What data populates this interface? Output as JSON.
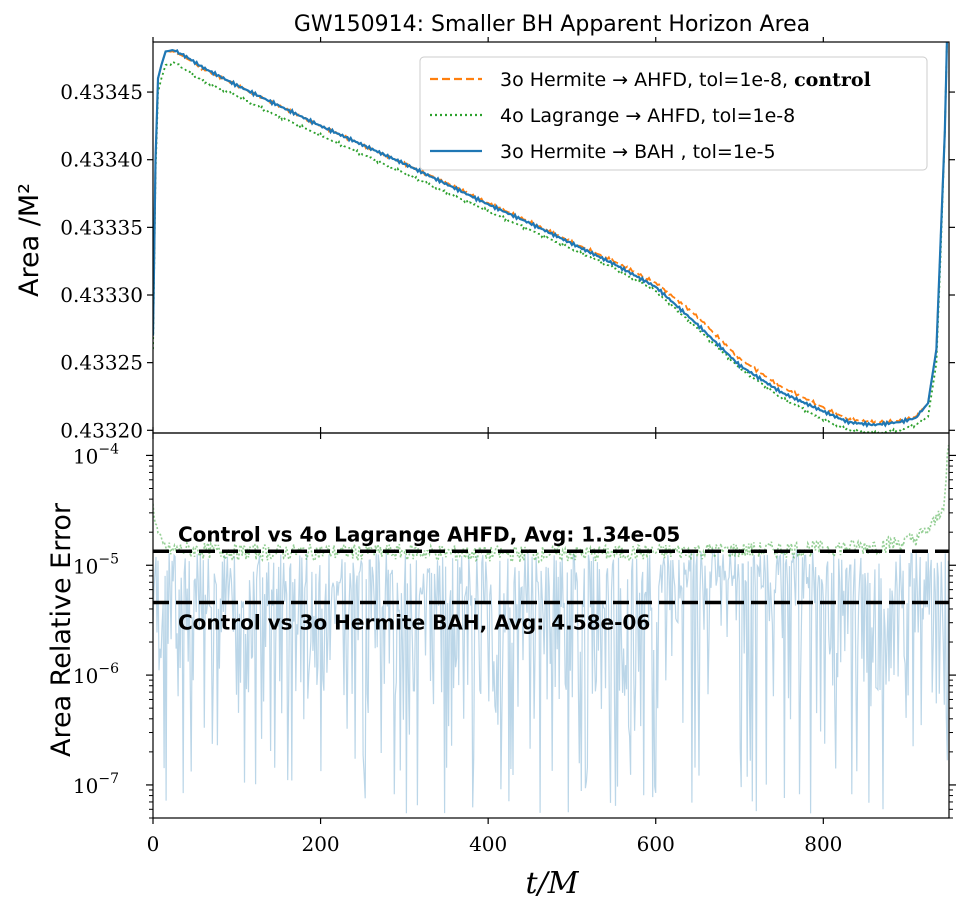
{
  "figure": {
    "title": "GW150914: Smaller BH Apparent Horizon Area",
    "xlabel": "t/M"
  },
  "chart_data": [
    {
      "type": "line",
      "panel": "top",
      "ylabel": "Area /M²",
      "xlim": [
        0,
        950
      ],
      "ylim": [
        0.433198,
        0.433487
      ],
      "yticks": [
        0.4332,
        0.43325,
        0.4333,
        0.43335,
        0.4334,
        0.43345
      ],
      "ytick_labels": [
        "0.43320",
        "0.43325",
        "0.43330",
        "0.43335",
        "0.43340",
        "0.43345"
      ],
      "legend_position": "top-right",
      "series": [
        {
          "name": "3o Hermite → AHFD, tol=1e-8,",
          "name_suffix": "control",
          "color": "#ff7f0e",
          "style": "dashed",
          "x": [
            0,
            3,
            6,
            10,
            15,
            25,
            40,
            60,
            100,
            150,
            200,
            250,
            300,
            350,
            400,
            450,
            500,
            550,
            600,
            650,
            700,
            750,
            800,
            830,
            860,
            890,
            910,
            925,
            935,
            940,
            945,
            948
          ],
          "y": [
            0.43327,
            0.4334,
            0.43346,
            0.43347,
            0.43348,
            0.43348,
            0.433475,
            0.433467,
            0.433455,
            0.43344,
            0.433425,
            0.433411,
            0.433397,
            0.433383,
            0.433368,
            0.433354,
            0.433339,
            0.433325,
            0.433309,
            0.433284,
            0.433253,
            0.433232,
            0.433217,
            0.433208,
            0.433206,
            0.433207,
            0.43321,
            0.43322,
            0.43326,
            0.43334,
            0.43342,
            0.4335
          ]
        },
        {
          "name": "4o Lagrange → AHFD, tol=1e-8",
          "color": "#2ca02c",
          "style": "dotted",
          "x": [
            0,
            3,
            6,
            10,
            15,
            25,
            40,
            60,
            100,
            150,
            200,
            250,
            300,
            350,
            400,
            450,
            500,
            550,
            600,
            650,
            700,
            750,
            800,
            830,
            860,
            890,
            910,
            925,
            935,
            940,
            945,
            948
          ],
          "y": [
            0.43326,
            0.43339,
            0.43345,
            0.43346,
            0.43347,
            0.433472,
            0.433466,
            0.433458,
            0.433447,
            0.433432,
            0.433418,
            0.433404,
            0.43339,
            0.433376,
            0.433362,
            0.433348,
            0.433334,
            0.43332,
            0.433303,
            0.433275,
            0.433246,
            0.433224,
            0.433208,
            0.4332,
            0.433198,
            0.4332,
            0.433204,
            0.43321,
            0.43325,
            0.43333,
            0.43342,
            0.4335
          ]
        },
        {
          "name": "3o Hermite → BAH , tol=1e-5",
          "color": "#1f77b4",
          "style": "solid",
          "x": [
            0,
            3,
            6,
            10,
            15,
            25,
            40,
            60,
            100,
            150,
            200,
            250,
            300,
            350,
            400,
            450,
            500,
            550,
            600,
            650,
            700,
            750,
            800,
            830,
            860,
            890,
            910,
            925,
            935,
            940,
            945,
            948
          ],
          "y": [
            0.43327,
            0.4334,
            0.43346,
            0.43347,
            0.43348,
            0.433481,
            0.433476,
            0.433468,
            0.433455,
            0.43344,
            0.433425,
            0.433411,
            0.433397,
            0.433382,
            0.433367,
            0.433353,
            0.433338,
            0.433323,
            0.433306,
            0.433278,
            0.433248,
            0.433228,
            0.433214,
            0.433206,
            0.433204,
            0.433206,
            0.433209,
            0.43322,
            0.43326,
            0.43334,
            0.43342,
            0.4335
          ]
        }
      ]
    },
    {
      "type": "line",
      "panel": "bottom",
      "ylabel": "Area Relative Error",
      "yscale": "log",
      "xlim": [
        0,
        950
      ],
      "ylim": [
        5e-08,
        0.00016
      ],
      "xticks": [
        0,
        200,
        400,
        600,
        800
      ],
      "xtick_labels": [
        "0",
        "200",
        "400",
        "600",
        "800"
      ],
      "ytick_labels": [
        {
          "base": "10",
          "exp": "−4",
          "value": 0.0001
        },
        {
          "base": "10",
          "exp": "−5",
          "value": 1e-05
        },
        {
          "base": "10",
          "exp": "−6",
          "value": 1e-06
        },
        {
          "base": "10",
          "exp": "−7",
          "value": 1e-07
        }
      ],
      "series": [
        {
          "color": "#2ca02c",
          "style": "dotted",
          "opacity": 0.5,
          "description_band": [
            1.1e-05,
            1.6e-05
          ],
          "x": [
            0,
            5,
            10,
            20,
            50,
            100,
            200,
            300,
            400,
            500,
            600,
            700,
            800,
            850,
            900,
            920,
            935,
            945,
            950
          ],
          "y": [
            3.5e-05,
            2e-05,
            1.5e-05,
            1.35e-05,
            1.35e-05,
            1.3e-05,
            1.3e-05,
            1.3e-05,
            1.25e-05,
            1.25e-05,
            1.3e-05,
            1.35e-05,
            1.4e-05,
            1.45e-05,
            1.6e-05,
            1.9e-05,
            2.5e-05,
            4e-05,
            0.00014
          ]
        },
        {
          "color": "#1f77b4",
          "style": "solid",
          "opacity": 0.3,
          "description_band": [
            5e-08,
            1.4e-05
          ],
          "x": [
            0,
            100,
            200,
            300,
            400,
            500,
            600,
            700,
            800,
            900,
            950
          ],
          "y": [
            6e-06,
            4e-06,
            3e-06,
            3e-06,
            3e-06,
            4e-06,
            5e-06,
            6e-06,
            4e-06,
            3e-06,
            1e-05
          ]
        }
      ],
      "hlines": [
        {
          "y": 1.34e-05,
          "label": "Control vs 4o Lagrange AHFD, Avg: 1.34e-05"
        },
        {
          "y": 4.58e-06,
          "label": "Control vs 3o Hermite BAH, Avg: 4.58e-06"
        }
      ]
    }
  ]
}
